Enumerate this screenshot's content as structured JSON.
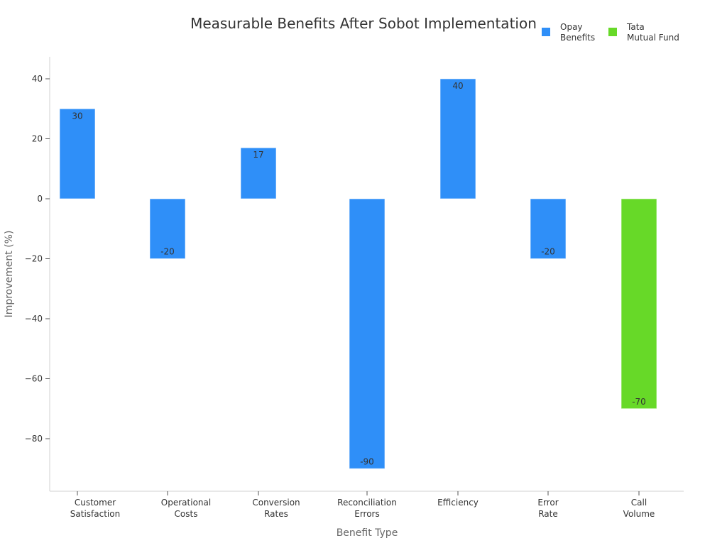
{
  "chart_data": {
    "type": "bar",
    "title": "Measurable Benefits After Sobot Implementation",
    "xlabel": "Benefit Type",
    "ylabel": "Improvement (%)",
    "categories": [
      [
        "Customer",
        "Satisfaction"
      ],
      [
        "Operational",
        "Costs"
      ],
      [
        "Conversion",
        "Rates"
      ],
      [
        "Reconciliation",
        "Errors"
      ],
      [
        "Efficiency"
      ],
      [
        "Error",
        "Rate"
      ],
      [
        "Call",
        "Volume"
      ]
    ],
    "yticks": [
      40,
      20,
      0,
      -20,
      -40,
      -60,
      -80
    ],
    "ytick_labels": [
      "40",
      "20",
      "0",
      "−20",
      "−40",
      "−60",
      "−80"
    ],
    "ylim": [
      -97,
      47
    ],
    "legend_position": "top-right",
    "series": [
      {
        "name": [
          "Opay",
          "Benefits"
        ],
        "color": "#2f8ff8",
        "values": [
          30,
          -20,
          17,
          -90,
          40,
          -20,
          null
        ],
        "data_labels": [
          "30",
          "-20",
          "17",
          "-90",
          "40",
          "-20",
          ""
        ]
      },
      {
        "name": [
          "Tata",
          "Mutual Fund"
        ],
        "color": "#67d928",
        "values": [
          null,
          null,
          null,
          null,
          null,
          null,
          -70
        ],
        "data_labels": [
          "",
          "",
          "",
          "",
          "",
          "",
          "-70"
        ]
      }
    ]
  }
}
